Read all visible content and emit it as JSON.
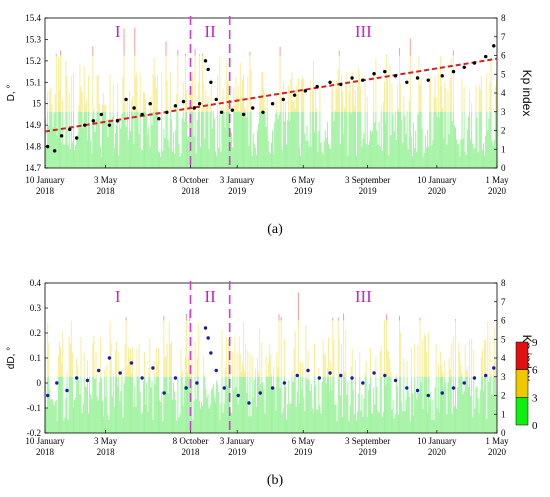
{
  "panel_labels": [
    "(a)",
    "(b)"
  ],
  "colorbar": {
    "ticks": [
      "9",
      "6",
      "3",
      "0"
    ],
    "colors": [
      "#e01010",
      "#f0c800",
      "#10f010"
    ]
  },
  "chart_data": [
    {
      "type": "scatter",
      "panel": "a",
      "ylabel": "D, °",
      "y2label": "Kp index",
      "ylim": [
        14.7,
        15.4
      ],
      "yticks": [
        "14.7",
        "14.8",
        "14.9",
        "15",
        "15.1",
        "15.2",
        "15.3",
        "15.4"
      ],
      "y2lim": [
        0,
        8
      ],
      "y2ticks": [
        "0",
        "1",
        "2",
        "3",
        "4",
        "5",
        "6",
        "7",
        "8"
      ],
      "xlim": [
        "2018-01-10",
        "2020-05-01"
      ],
      "xticks": [
        {
          "date": "2018-01-10",
          "l1": "10 January",
          "l2": "2018"
        },
        {
          "date": "2018-05-03",
          "l1": "3 May",
          "l2": "2018"
        },
        {
          "date": "2018-10-08",
          "l1": "8 October",
          "l2": "2018"
        },
        {
          "date": "2019-01-03",
          "l1": "3 January",
          "l2": "2019"
        },
        {
          "date": "2019-05-06",
          "l1": "6 May",
          "l2": "2019"
        },
        {
          "date": "2019-09-03",
          "l1": "3 September",
          "l2": "2019"
        },
        {
          "date": "2020-01-10",
          "l1": "10 January",
          "l2": "2020"
        },
        {
          "date": "2020-05-01",
          "l1": "1 May",
          "l2": "2020"
        }
      ],
      "periods": [
        {
          "label": "I",
          "start": "2018-01-10",
          "end": "2018-10-08"
        },
        {
          "label": "II",
          "start": "2018-10-08",
          "end": "2018-12-20"
        },
        {
          "label": "III",
          "start": "2018-12-20",
          "end": "2020-05-01"
        }
      ],
      "boundaries": [
        "2018-10-08",
        "2018-12-20"
      ],
      "trend": {
        "start": {
          "date": "2018-01-10",
          "value": 14.87
        },
        "end": {
          "date": "2020-05-01",
          "value": 15.21
        }
      },
      "series": [
        {
          "color": "#000000",
          "points": [
            {
              "x": "2018-01-15",
              "y": 14.8
            },
            {
              "x": "2018-01-28",
              "y": 14.78
            },
            {
              "x": "2018-02-10",
              "y": 14.85
            },
            {
              "x": "2018-02-25",
              "y": 14.88
            },
            {
              "x": "2018-03-10",
              "y": 14.84
            },
            {
              "x": "2018-03-25",
              "y": 14.9
            },
            {
              "x": "2018-04-10",
              "y": 14.92
            },
            {
              "x": "2018-04-25",
              "y": 14.95
            },
            {
              "x": "2018-05-10",
              "y": 14.9
            },
            {
              "x": "2018-05-25",
              "y": 14.92
            },
            {
              "x": "2018-06-10",
              "y": 15.02
            },
            {
              "x": "2018-06-25",
              "y": 14.98
            },
            {
              "x": "2018-07-10",
              "y": 14.95
            },
            {
              "x": "2018-07-25",
              "y": 15.0
            },
            {
              "x": "2018-08-10",
              "y": 14.93
            },
            {
              "x": "2018-08-25",
              "y": 14.96
            },
            {
              "x": "2018-09-10",
              "y": 14.99
            },
            {
              "x": "2018-09-25",
              "y": 15.01
            },
            {
              "x": "2018-10-15",
              "y": 14.98
            },
            {
              "x": "2018-10-25",
              "y": 15.0
            },
            {
              "x": "2018-11-05",
              "y": 15.2
            },
            {
              "x": "2018-11-10",
              "y": 15.16
            },
            {
              "x": "2018-11-15",
              "y": 15.1
            },
            {
              "x": "2018-11-25",
              "y": 15.02
            },
            {
              "x": "2018-12-05",
              "y": 14.96
            },
            {
              "x": "2018-12-25",
              "y": 14.97
            },
            {
              "x": "2019-01-15",
              "y": 14.95
            },
            {
              "x": "2019-02-01",
              "y": 14.98
            },
            {
              "x": "2019-02-20",
              "y": 14.96
            },
            {
              "x": "2019-03-10",
              "y": 15.0
            },
            {
              "x": "2019-03-30",
              "y": 15.02
            },
            {
              "x": "2019-04-20",
              "y": 15.04
            },
            {
              "x": "2019-05-10",
              "y": 15.06
            },
            {
              "x": "2019-06-01",
              "y": 15.08
            },
            {
              "x": "2019-06-25",
              "y": 15.1
            },
            {
              "x": "2019-07-15",
              "y": 15.09
            },
            {
              "x": "2019-08-05",
              "y": 15.12
            },
            {
              "x": "2019-08-25",
              "y": 15.11
            },
            {
              "x": "2019-09-15",
              "y": 15.14
            },
            {
              "x": "2019-10-05",
              "y": 15.15
            },
            {
              "x": "2019-10-25",
              "y": 15.13
            },
            {
              "x": "2019-11-15",
              "y": 15.1
            },
            {
              "x": "2019-12-05",
              "y": 15.12
            },
            {
              "x": "2019-12-25",
              "y": 15.11
            },
            {
              "x": "2020-01-20",
              "y": 15.13
            },
            {
              "x": "2020-02-10",
              "y": 15.15
            },
            {
              "x": "2020-03-01",
              "y": 15.17
            },
            {
              "x": "2020-03-20",
              "y": 15.19
            },
            {
              "x": "2020-04-10",
              "y": 15.22
            },
            {
              "x": "2020-04-25",
              "y": 15.27
            }
          ]
        }
      ]
    },
    {
      "type": "scatter",
      "panel": "b",
      "ylabel": "dD, °",
      "y2label": "Kp index",
      "ylim": [
        -0.2,
        0.4
      ],
      "yticks": [
        "-0.2",
        "-0.1",
        "0",
        "0.1",
        "0.2",
        "0.3",
        "0.4"
      ],
      "y2lim": [
        0,
        8
      ],
      "y2ticks": [
        "0",
        "1",
        "2",
        "3",
        "4",
        "5",
        "6",
        "7",
        "8"
      ],
      "xlim": [
        "2018-01-10",
        "2020-05-01"
      ],
      "xticks": [
        {
          "date": "2018-01-10",
          "l1": "10 January",
          "l2": "2018"
        },
        {
          "date": "2018-05-03",
          "l1": "3 May",
          "l2": "2018"
        },
        {
          "date": "2018-10-08",
          "l1": "8 October",
          "l2": "2018"
        },
        {
          "date": "2019-01-03",
          "l1": "3 January",
          "l2": "2019"
        },
        {
          "date": "2019-05-06",
          "l1": "6 May",
          "l2": "2019"
        },
        {
          "date": "2019-09-03",
          "l1": "3 September",
          "l2": "2019"
        },
        {
          "date": "2020-01-10",
          "l1": "10 January",
          "l2": "2020"
        },
        {
          "date": "2020-05-01",
          "l1": "1 May",
          "l2": "2020"
        }
      ],
      "periods": [
        {
          "label": "I",
          "start": "2018-01-10",
          "end": "2018-10-08"
        },
        {
          "label": "II",
          "start": "2018-10-08",
          "end": "2018-12-20"
        },
        {
          "label": "III",
          "start": "2018-12-20",
          "end": "2020-05-01"
        }
      ],
      "boundaries": [
        "2018-10-08",
        "2018-12-20"
      ],
      "series": [
        {
          "color": "#1a1aa8",
          "points": [
            {
              "x": "2018-01-15",
              "y": -0.05
            },
            {
              "x": "2018-02-01",
              "y": 0.0
            },
            {
              "x": "2018-02-20",
              "y": -0.03
            },
            {
              "x": "2018-03-10",
              "y": 0.02
            },
            {
              "x": "2018-03-30",
              "y": 0.01
            },
            {
              "x": "2018-04-20",
              "y": 0.05
            },
            {
              "x": "2018-05-10",
              "y": 0.1
            },
            {
              "x": "2018-05-30",
              "y": 0.04
            },
            {
              "x": "2018-06-20",
              "y": 0.08
            },
            {
              "x": "2018-07-10",
              "y": 0.02
            },
            {
              "x": "2018-07-30",
              "y": 0.06
            },
            {
              "x": "2018-08-20",
              "y": -0.04
            },
            {
              "x": "2018-09-10",
              "y": 0.02
            },
            {
              "x": "2018-09-30",
              "y": -0.02
            },
            {
              "x": "2018-10-20",
              "y": 0.0
            },
            {
              "x": "2018-11-05",
              "y": 0.22
            },
            {
              "x": "2018-11-10",
              "y": 0.18
            },
            {
              "x": "2018-11-15",
              "y": 0.12
            },
            {
              "x": "2018-11-25",
              "y": 0.05
            },
            {
              "x": "2018-12-10",
              "y": -0.02
            },
            {
              "x": "2019-01-05",
              "y": -0.05
            },
            {
              "x": "2019-01-25",
              "y": -0.08
            },
            {
              "x": "2019-02-15",
              "y": -0.04
            },
            {
              "x": "2019-03-10",
              "y": -0.02
            },
            {
              "x": "2019-04-01",
              "y": 0.0
            },
            {
              "x": "2019-04-25",
              "y": 0.03
            },
            {
              "x": "2019-05-15",
              "y": 0.05
            },
            {
              "x": "2019-06-05",
              "y": 0.02
            },
            {
              "x": "2019-06-25",
              "y": 0.04
            },
            {
              "x": "2019-07-15",
              "y": 0.03
            },
            {
              "x": "2019-08-05",
              "y": 0.02
            },
            {
              "x": "2019-08-25",
              "y": 0.0
            },
            {
              "x": "2019-09-15",
              "y": 0.04
            },
            {
              "x": "2019-10-05",
              "y": 0.03
            },
            {
              "x": "2019-10-25",
              "y": 0.01
            },
            {
              "x": "2019-11-15",
              "y": -0.02
            },
            {
              "x": "2019-12-05",
              "y": -0.03
            },
            {
              "x": "2019-12-25",
              "y": -0.05
            },
            {
              "x": "2020-01-20",
              "y": -0.04
            },
            {
              "x": "2020-02-10",
              "y": -0.02
            },
            {
              "x": "2020-03-01",
              "y": 0.0
            },
            {
              "x": "2020-03-20",
              "y": 0.02
            },
            {
              "x": "2020-04-10",
              "y": 0.03
            },
            {
              "x": "2020-04-25",
              "y": 0.06
            }
          ]
        }
      ]
    }
  ]
}
